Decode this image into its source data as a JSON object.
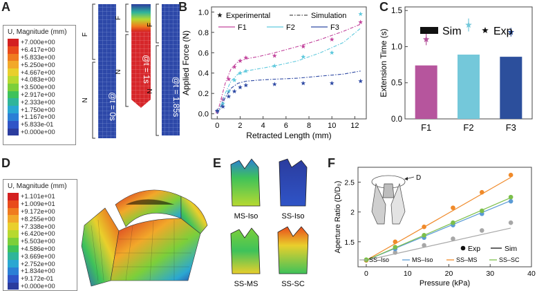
{
  "panels": {
    "A": "A",
    "B": "B",
    "C": "C",
    "D": "D",
    "E": "E",
    "F": "F"
  },
  "legendA": {
    "title": "U, Magnitude (mm)",
    "values": [
      "+7.000e+00",
      "+6.417e+00",
      "+5.833e+00",
      "+5.250e+00",
      "+4.667e+00",
      "+4.083e+00",
      "+3.500e+00",
      "+2.917e+00",
      "+2.333e+00",
      "+1.750e+00",
      "+1.167e+00",
      "+5.833e-01",
      "+0.000e+00"
    ],
    "colors": [
      "#d42020",
      "#e94b1b",
      "#f07b1f",
      "#f2a82a",
      "#e9cf2c",
      "#b7d930",
      "#7ccf3a",
      "#3ec25a",
      "#2fb59a",
      "#2aa7d2",
      "#2b7fd6",
      "#2f54c7",
      "#2b3c9e"
    ]
  },
  "legendD": {
    "title": "U, Magnitude (mm)",
    "values": [
      "+1.101e+01",
      "+1.009e+01",
      "+9.172e+00",
      "+8.255e+00",
      "+7.338e+00",
      "+6.420e+00",
      "+5.503e+00",
      "+4.586e+00",
      "+3.669e+00",
      "+2.752e+00",
      "+1.834e+00",
      "+9.172e-01",
      "+0.000e+00"
    ],
    "colors": [
      "#d42020",
      "#e94b1b",
      "#f07b1f",
      "#f2a82a",
      "#e9cf2c",
      "#b7d930",
      "#7ccf3a",
      "#3ec25a",
      "#2fb59a",
      "#2aa7d2",
      "#2b7fd6",
      "#2f54c7",
      "#2b3c9e"
    ]
  },
  "panelA": {
    "time_labels": [
      "@t = 0s",
      "@t = 1s",
      "@t = 1.85s"
    ],
    "label_F": "F",
    "label_N": "N"
  },
  "panelE": {
    "labels": [
      "MS-Iso",
      "SS-Iso",
      "SS-MS",
      "SS-SC"
    ]
  },
  "panelF": {
    "inset_label": "D"
  },
  "chart_data": [
    {
      "id": "B",
      "type": "line",
      "title": "",
      "xlabel": "Retracted Length (mm)",
      "ylabel": "Applied Force (N)",
      "xlim": [
        -0.5,
        13
      ],
      "ylim": [
        -0.05,
        1.05
      ],
      "xticks": [
        0,
        2,
        4,
        6,
        8,
        10,
        12
      ],
      "yticks": [
        0.0,
        0.2,
        0.4,
        0.6,
        0.8,
        1.0
      ],
      "ytick_labels": [
        "0.0",
        "0.2",
        "0.4",
        "0.6",
        "0.8",
        "1.0"
      ],
      "legend": {
        "experimental": "Experimental",
        "simulation": "Simulation"
      },
      "series": [
        {
          "name": "F1",
          "color": "#c2439c",
          "exp_x": [
            0,
            0.5,
            1,
            1.5,
            2,
            2.5,
            5,
            7.5,
            10,
            12.5
          ],
          "exp_y": [
            0.02,
            0.14,
            0.34,
            0.46,
            0.52,
            0.55,
            0.57,
            0.66,
            0.73,
            0.9
          ],
          "sim_x": [
            0,
            0.3,
            0.7,
            1.2,
            1.8,
            2.5,
            3.5,
            5,
            7,
            9,
            11,
            12.5
          ],
          "sim_y": [
            0,
            0.13,
            0.3,
            0.44,
            0.51,
            0.54,
            0.56,
            0.6,
            0.66,
            0.73,
            0.81,
            0.88
          ]
        },
        {
          "name": "F2",
          "color": "#5fc9dd",
          "exp_x": [
            0,
            0.5,
            1,
            1.5,
            2,
            2.5,
            5,
            7.5,
            10,
            12.5
          ],
          "exp_y": [
            0.03,
            0.1,
            0.22,
            0.33,
            0.4,
            0.42,
            0.47,
            0.56,
            0.6,
            0.98
          ],
          "sim_x": [
            0,
            0.3,
            0.7,
            1.2,
            1.8,
            2.5,
            3.5,
            5,
            7,
            9,
            11,
            12.5
          ],
          "sim_y": [
            0,
            0.08,
            0.2,
            0.32,
            0.39,
            0.42,
            0.44,
            0.47,
            0.52,
            0.6,
            0.7,
            0.84
          ]
        },
        {
          "name": "F3",
          "color": "#2f4aa4",
          "exp_x": [
            0,
            0.5,
            1,
            1.5,
            2,
            2.5,
            5,
            7.5,
            10,
            12.5
          ],
          "exp_y": [
            0.03,
            0.07,
            0.17,
            0.22,
            0.26,
            0.28,
            0.29,
            0.3,
            0.3,
            0.32
          ],
          "sim_x": [
            0,
            0.3,
            0.7,
            1.2,
            1.8,
            2.5,
            3.5,
            5,
            7,
            9,
            11,
            12.5
          ],
          "sim_y": [
            0,
            0.06,
            0.16,
            0.25,
            0.3,
            0.32,
            0.33,
            0.34,
            0.35,
            0.37,
            0.39,
            0.42
          ]
        }
      ]
    },
    {
      "id": "C",
      "type": "bar",
      "xlabel": "",
      "ylabel": "Extension Time (s)",
      "categories": [
        "F1",
        "F2",
        "F3"
      ],
      "colors": [
        "#b6559d",
        "#74c8da",
        "#2c4f9c"
      ],
      "sim_values": [
        0.74,
        0.89,
        0.86
      ],
      "exp_values": [
        1.1,
        1.3,
        1.2
      ],
      "exp_error": [
        0.08,
        0.09,
        0.06
      ],
      "ylim": [
        0.0,
        1.55
      ],
      "yticks": [
        0.0,
        0.5,
        1.0,
        1.5
      ],
      "ytick_labels": [
        "0.0",
        "0.5",
        "1.0",
        "1.5"
      ],
      "legend": {
        "sim": "Sim",
        "exp": "Exp"
      }
    },
    {
      "id": "F",
      "type": "scatter",
      "xlabel": "Pressure (kPa)",
      "ylabel": "Aperture Ratio (D/D₀)",
      "xlim": [
        -2,
        40
      ],
      "ylim": [
        1.08,
        2.75
      ],
      "xticks": [
        0,
        10,
        20,
        30,
        40
      ],
      "yticks": [
        1.5,
        2.0,
        2.5
      ],
      "ytick_labels": [
        "1.5",
        "2",
        "2.5"
      ],
      "legend": {
        "exp": "Exp",
        "sim": "Sim"
      },
      "series": [
        {
          "name": "SS–Iso",
          "color": "#a7a7a7",
          "exp_x": [
            0,
            7,
            14,
            21,
            28,
            35
          ],
          "exp_y": [
            1.19,
            1.32,
            1.44,
            1.55,
            1.69,
            1.82
          ],
          "sim_x": [
            0,
            35
          ],
          "sim_y": [
            1.19,
            1.73
          ]
        },
        {
          "name": "MS–Iso",
          "color": "#5b9bd5",
          "exp_x": [
            0,
            7,
            14,
            21,
            28,
            35
          ],
          "exp_y": [
            1.19,
            1.38,
            1.57,
            1.78,
            1.97,
            2.18
          ],
          "sim_x": [
            0,
            35
          ],
          "sim_y": [
            1.19,
            2.19
          ]
        },
        {
          "name": "SS–MS",
          "color": "#f08a2a",
          "exp_x": [
            0,
            7,
            14,
            21,
            28,
            35
          ],
          "exp_y": [
            1.19,
            1.5,
            1.75,
            2.07,
            2.33,
            2.62
          ],
          "sim_x": [
            0,
            35
          ],
          "sim_y": [
            1.19,
            2.58
          ]
        },
        {
          "name": "SS–SC",
          "color": "#7cbf4a",
          "exp_x": [
            0,
            7,
            14,
            21,
            28,
            35
          ],
          "exp_y": [
            1.2,
            1.41,
            1.61,
            1.82,
            2.02,
            2.25
          ],
          "sim_x": [
            0,
            35
          ],
          "sim_y": [
            1.19,
            2.24
          ]
        }
      ]
    }
  ]
}
